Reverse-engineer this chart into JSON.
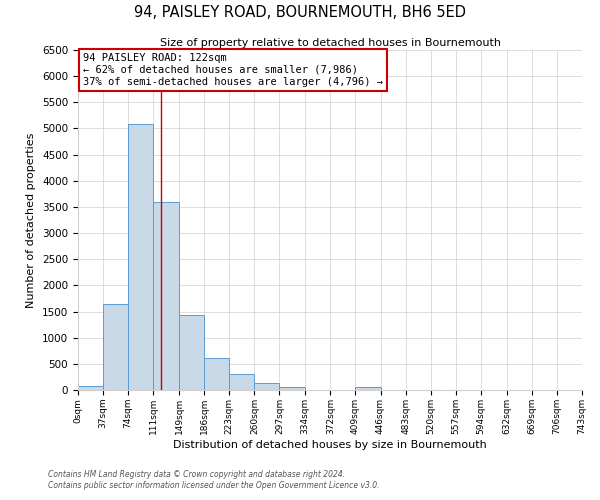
{
  "title": "94, PAISLEY ROAD, BOURNEMOUTH, BH6 5ED",
  "subtitle": "Size of property relative to detached houses in Bournemouth",
  "xlabel": "Distribution of detached houses by size in Bournemouth",
  "ylabel": "Number of detached properties",
  "bin_edges": [
    0,
    37,
    74,
    111,
    149,
    186,
    223,
    260,
    297,
    334,
    372,
    409,
    446,
    483,
    520,
    557,
    594,
    632,
    669,
    706,
    743
  ],
  "bin_labels": [
    "0sqm",
    "37sqm",
    "74sqm",
    "111sqm",
    "149sqm",
    "186sqm",
    "223sqm",
    "260sqm",
    "297sqm",
    "334sqm",
    "372sqm",
    "409sqm",
    "446sqm",
    "483sqm",
    "520sqm",
    "557sqm",
    "594sqm",
    "632sqm",
    "669sqm",
    "706sqm",
    "743sqm"
  ],
  "counts": [
    70,
    1650,
    5080,
    3590,
    1430,
    620,
    300,
    140,
    60,
    5,
    5,
    60,
    0,
    0,
    0,
    0,
    0,
    0,
    0,
    0
  ],
  "bar_color": "#c9d9e8",
  "bar_edge_color": "#5b9bd5",
  "property_line_x": 122,
  "property_line_color": "#cc0000",
  "annotation_title": "94 PAISLEY ROAD: 122sqm",
  "annotation_line1": "← 62% of detached houses are smaller (7,986)",
  "annotation_line2": "37% of semi-detached houses are larger (4,796) →",
  "annotation_box_color": "#cc0000",
  "ylim": [
    0,
    6500
  ],
  "yticks": [
    0,
    500,
    1000,
    1500,
    2000,
    2500,
    3000,
    3500,
    4000,
    4500,
    5000,
    5500,
    6000,
    6500
  ],
  "footer1": "Contains HM Land Registry data © Crown copyright and database right 2024.",
  "footer2": "Contains public sector information licensed under the Open Government Licence v3.0.",
  "bg_color": "#ffffff",
  "grid_color": "#d0d0d0"
}
